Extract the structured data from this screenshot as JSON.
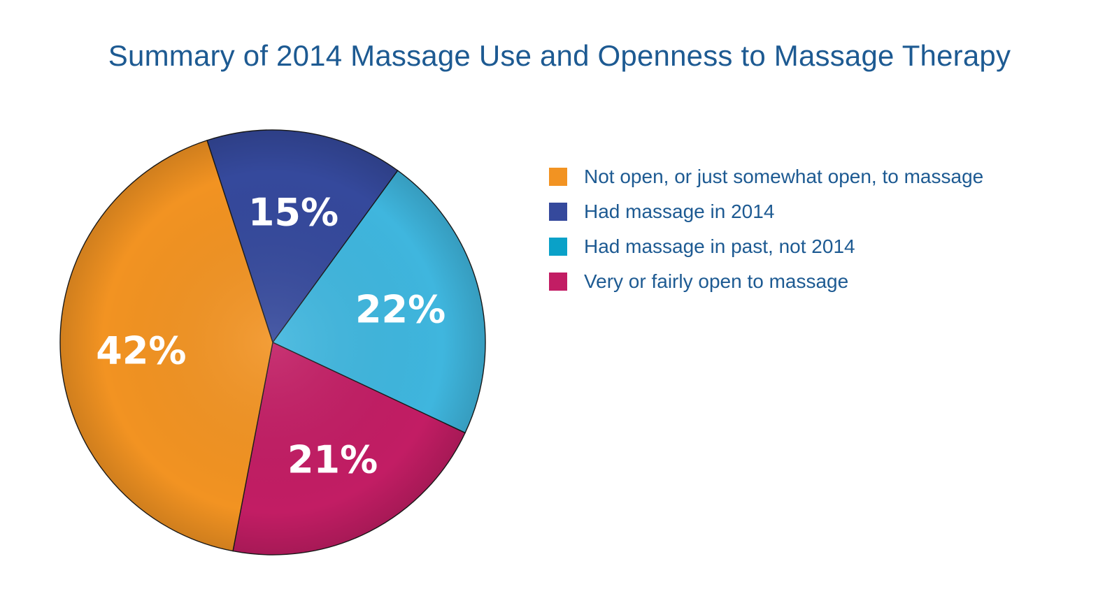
{
  "chart_data": {
    "type": "pie",
    "title": "Summary of 2014 Massage Use and Openness to Massage Therapy",
    "legend_position": "right",
    "slices": [
      {
        "name": "Had massage in 2014",
        "value": 15,
        "label": "15%",
        "color": "#35499c"
      },
      {
        "name": "Had massage in past, not 2014",
        "value": 22,
        "label": "22%",
        "color": "#3fb6de"
      },
      {
        "name": "Very or fairly open to massage",
        "value": 21,
        "label": "21%",
        "color": "#c21d64"
      },
      {
        "name": "Not open, or just somewhat open, to massage",
        "value": 42,
        "label": "42%",
        "color": "#f29322"
      }
    ],
    "legend": [
      {
        "name": "Not open, or just somewhat open, to massage",
        "color": "#f29322"
      },
      {
        "name": "Had massage in 2014",
        "color": "#35499c"
      },
      {
        "name": "Had massage in past, not 2014",
        "color": "#0aa1c8"
      },
      {
        "name": "Very or fairly open to massage",
        "color": "#c21d64"
      }
    ]
  }
}
